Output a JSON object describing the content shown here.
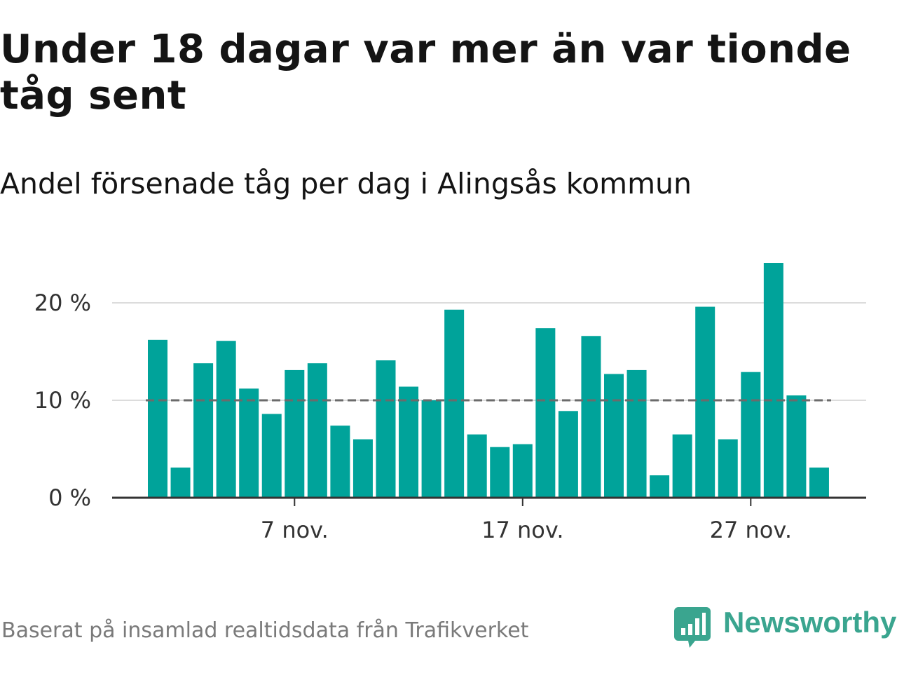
{
  "title": "Under 18 dagar var mer än var tionde tåg sent",
  "subtitle": "Andel försenade tåg per dag i Alingsås kommun",
  "source": "Baserat på insamlad realtidsdata från Trafikverket",
  "brand": {
    "name": "Newsworthy",
    "color": "#3aa58f"
  },
  "colors": {
    "bar": "#00a39a",
    "reference_line": "#6b6b6b",
    "gridline": "#dcdcdc",
    "axis": "#333333"
  },
  "chart_data": {
    "type": "bar",
    "x": [
      "1 nov.",
      "2 nov.",
      "3 nov.",
      "4 nov.",
      "5 nov.",
      "6 nov.",
      "7 nov.",
      "8 nov.",
      "9 nov.",
      "10 nov.",
      "11 nov.",
      "12 nov.",
      "13 nov.",
      "14 nov.",
      "15 nov.",
      "16 nov.",
      "17 nov.",
      "18 nov.",
      "19 nov.",
      "20 nov.",
      "21 nov.",
      "22 nov.",
      "23 nov.",
      "24 nov.",
      "25 nov.",
      "26 nov.",
      "27 nov.",
      "28 nov.",
      "29 nov.",
      "30 nov."
    ],
    "values": [
      16.2,
      3.1,
      13.8,
      16.1,
      11.2,
      8.6,
      13.1,
      13.8,
      7.4,
      6.0,
      14.1,
      11.4,
      10.0,
      19.3,
      6.5,
      5.2,
      5.5,
      17.4,
      8.9,
      16.6,
      12.7,
      13.1,
      2.3,
      6.5,
      19.6,
      6.0,
      12.9,
      24.1,
      10.5,
      3.1
    ],
    "x_tick_labels": [
      "7 nov.",
      "17 nov.",
      "27 nov."
    ],
    "y_ticks": [
      0,
      10,
      20
    ],
    "y_tick_labels": [
      "0 %",
      "10 %",
      "20 %"
    ],
    "ylim": [
      0,
      25
    ],
    "reference_line": 10,
    "grid": true
  }
}
